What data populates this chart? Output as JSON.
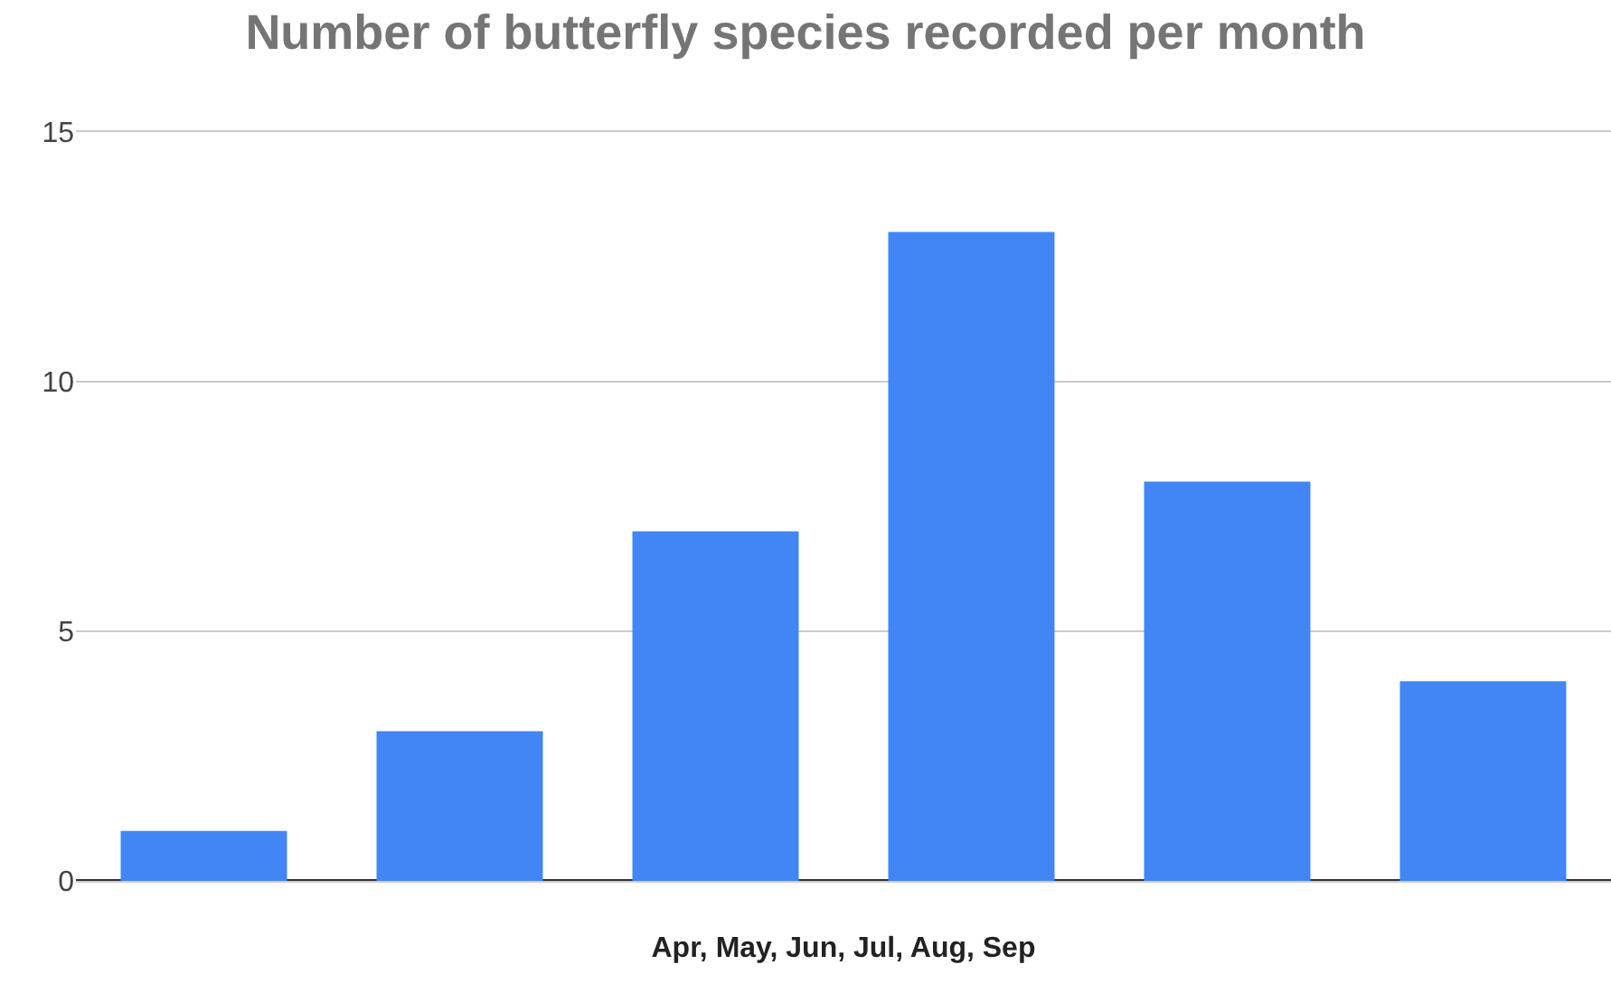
{
  "chart_data": {
    "type": "bar",
    "title": "Number of butterfly species recorded per month",
    "xlabel": "Apr, May, Jun, Jul, Aug, Sep",
    "categories": [
      null,
      null,
      null,
      null,
      null,
      null
    ],
    "values": [
      1,
      3,
      7,
      13,
      8,
      4
    ],
    "color": "#4285f4",
    "ylim": [
      0,
      15
    ],
    "yticks": [
      0,
      5,
      10,
      15
    ],
    "grid": "y"
  }
}
